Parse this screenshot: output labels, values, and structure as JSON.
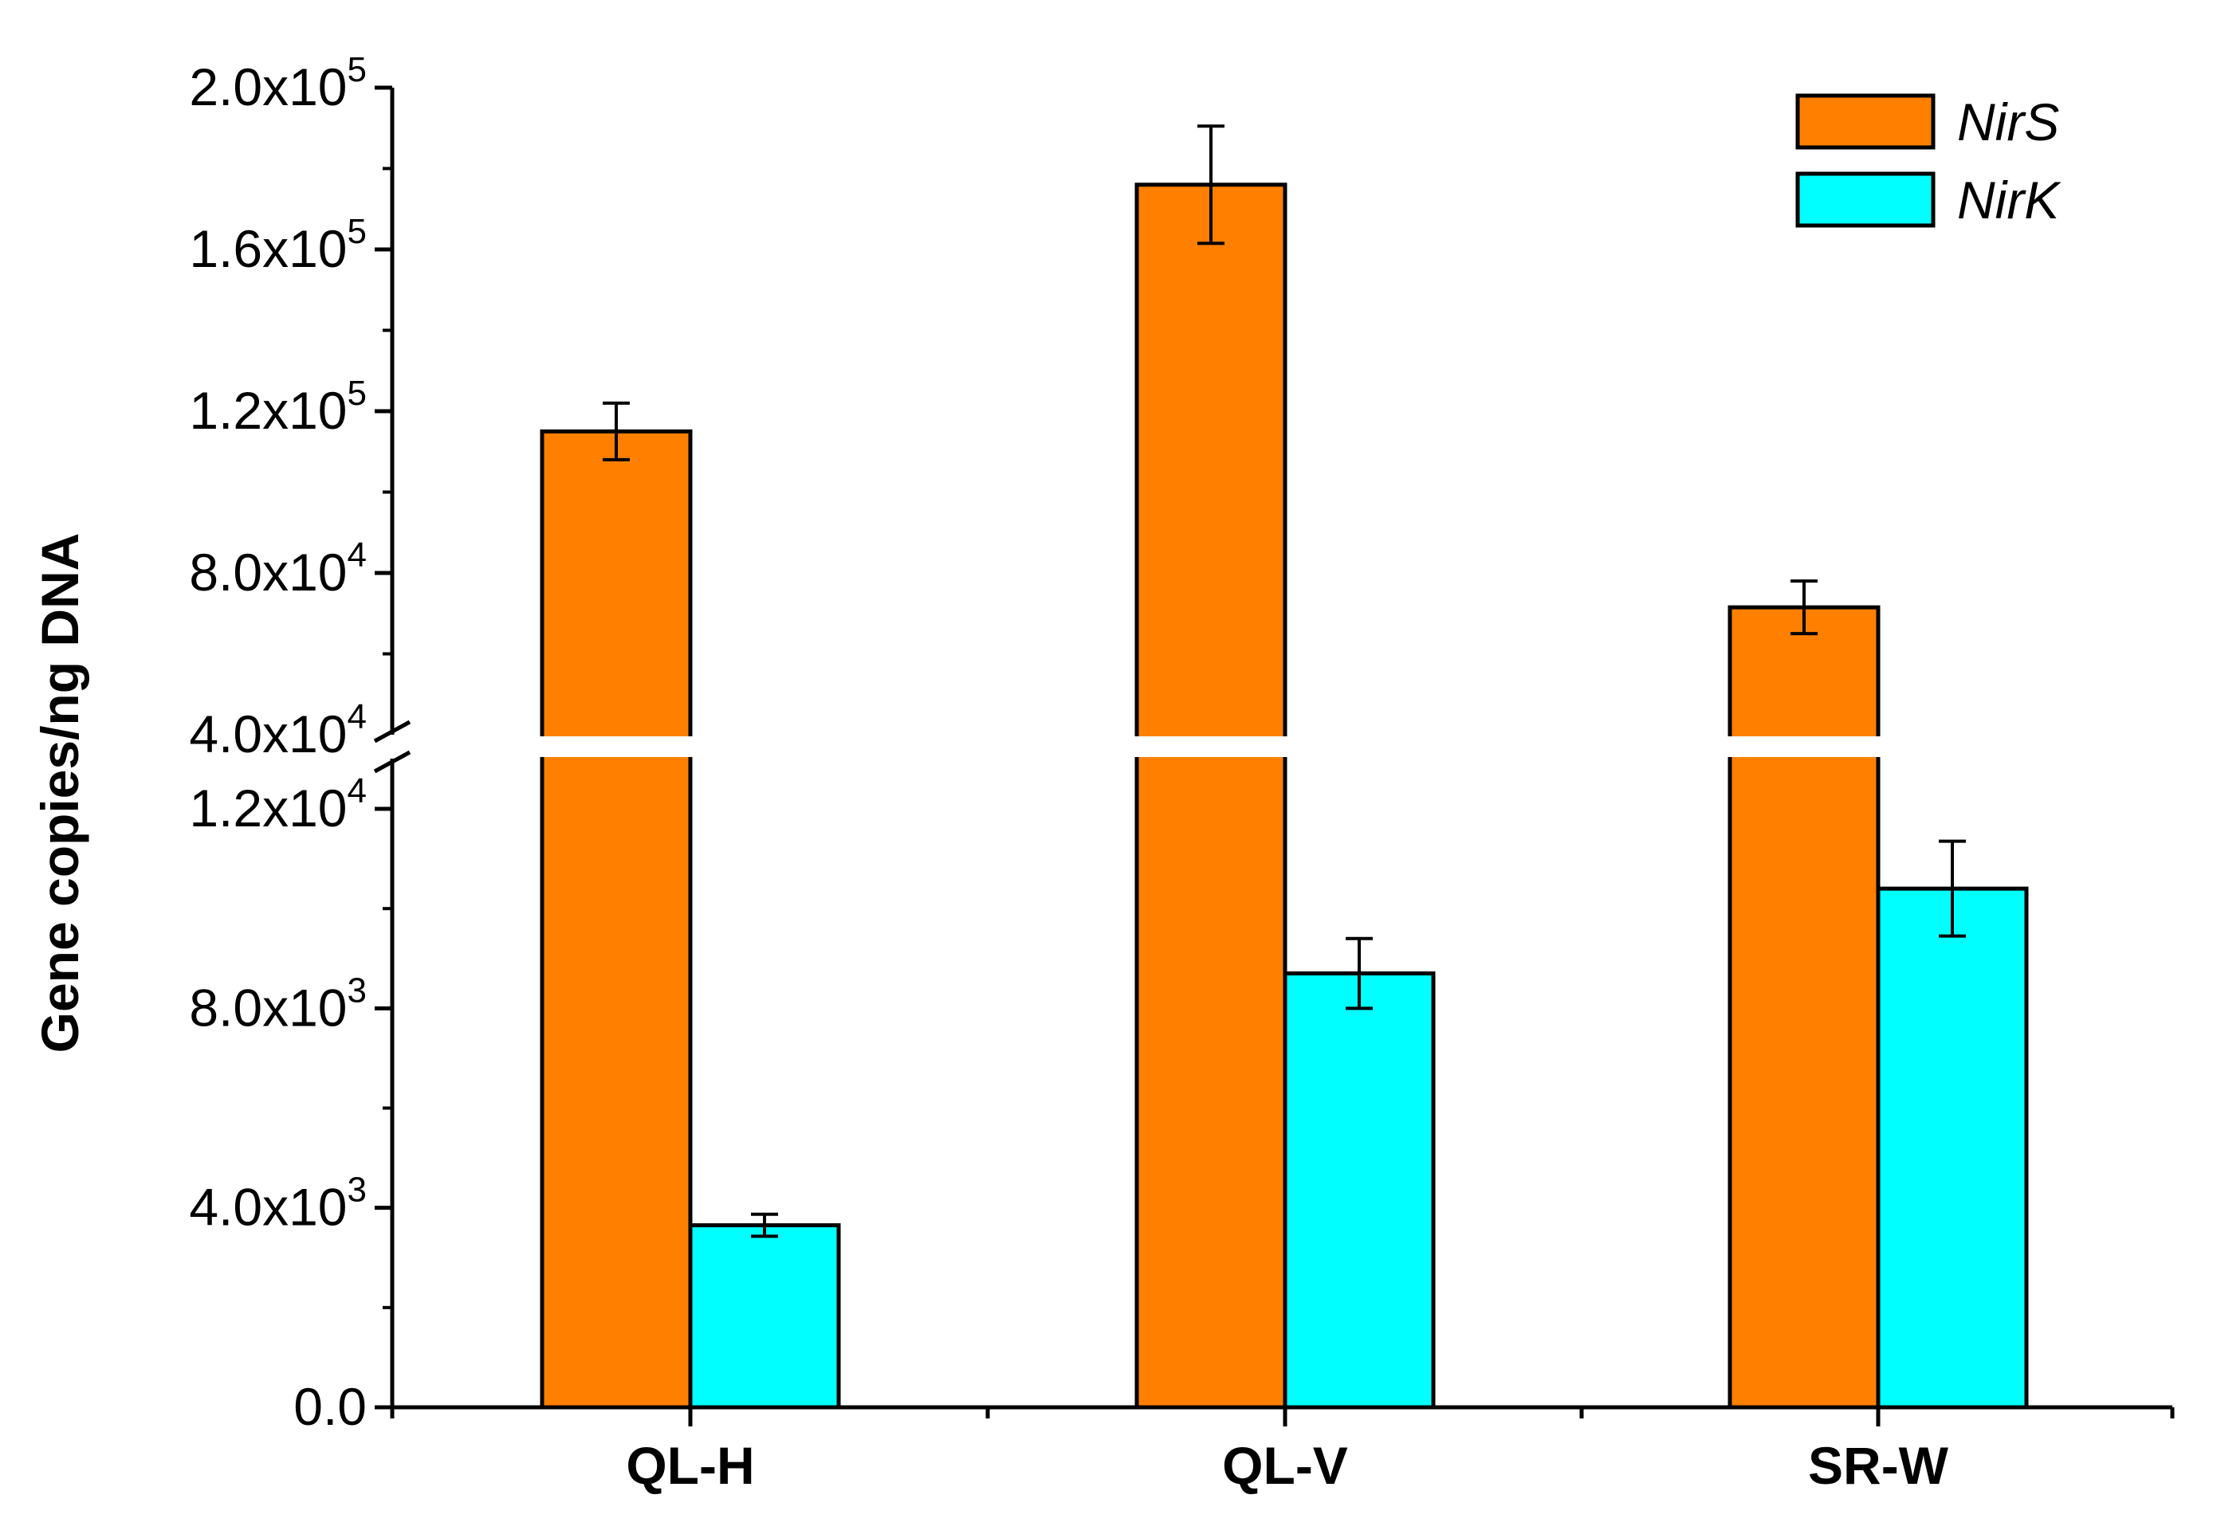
{
  "chart_data": {
    "type": "bar",
    "title": "",
    "xlabel": "",
    "ylabel": "Gene copies/ng DNA",
    "categories": [
      "QL-H",
      "QL-V",
      "SR-W"
    ],
    "series": [
      {
        "name": "NirS",
        "color": "#FF8000",
        "values": [
          115000,
          176000,
          71500
        ],
        "errors": [
          7000,
          14500,
          6500
        ]
      },
      {
        "name": "NirK",
        "color": "#00FFFF",
        "values": [
          3650,
          8700,
          10400
        ],
        "errors": [
          220,
          700,
          950
        ]
      }
    ],
    "axis_break": {
      "lower_range": [
        0,
        13000
      ],
      "upper_range": [
        40000,
        200000
      ]
    },
    "lower_ticks": [
      {
        "value": 0,
        "mantissa": "0.0",
        "exponent": ""
      },
      {
        "value": 4000,
        "mantissa": "4.0x10",
        "exponent": "3"
      },
      {
        "value": 8000,
        "mantissa": "8.0x10",
        "exponent": "3"
      },
      {
        "value": 12000,
        "mantissa": "1.2x10",
        "exponent": "4"
      }
    ],
    "upper_ticks": [
      {
        "value": 40000,
        "mantissa": "4.0x10",
        "exponent": "4"
      },
      {
        "value": 80000,
        "mantissa": "8.0x10",
        "exponent": "4"
      },
      {
        "value": 120000,
        "mantissa": "1.2x10",
        "exponent": "5"
      },
      {
        "value": 160000,
        "mantissa": "1.6x10",
        "exponent": "5"
      },
      {
        "value": 200000,
        "mantissa": "2.0x10",
        "exponent": "5"
      }
    ],
    "legend": {
      "position": "top-right"
    }
  }
}
